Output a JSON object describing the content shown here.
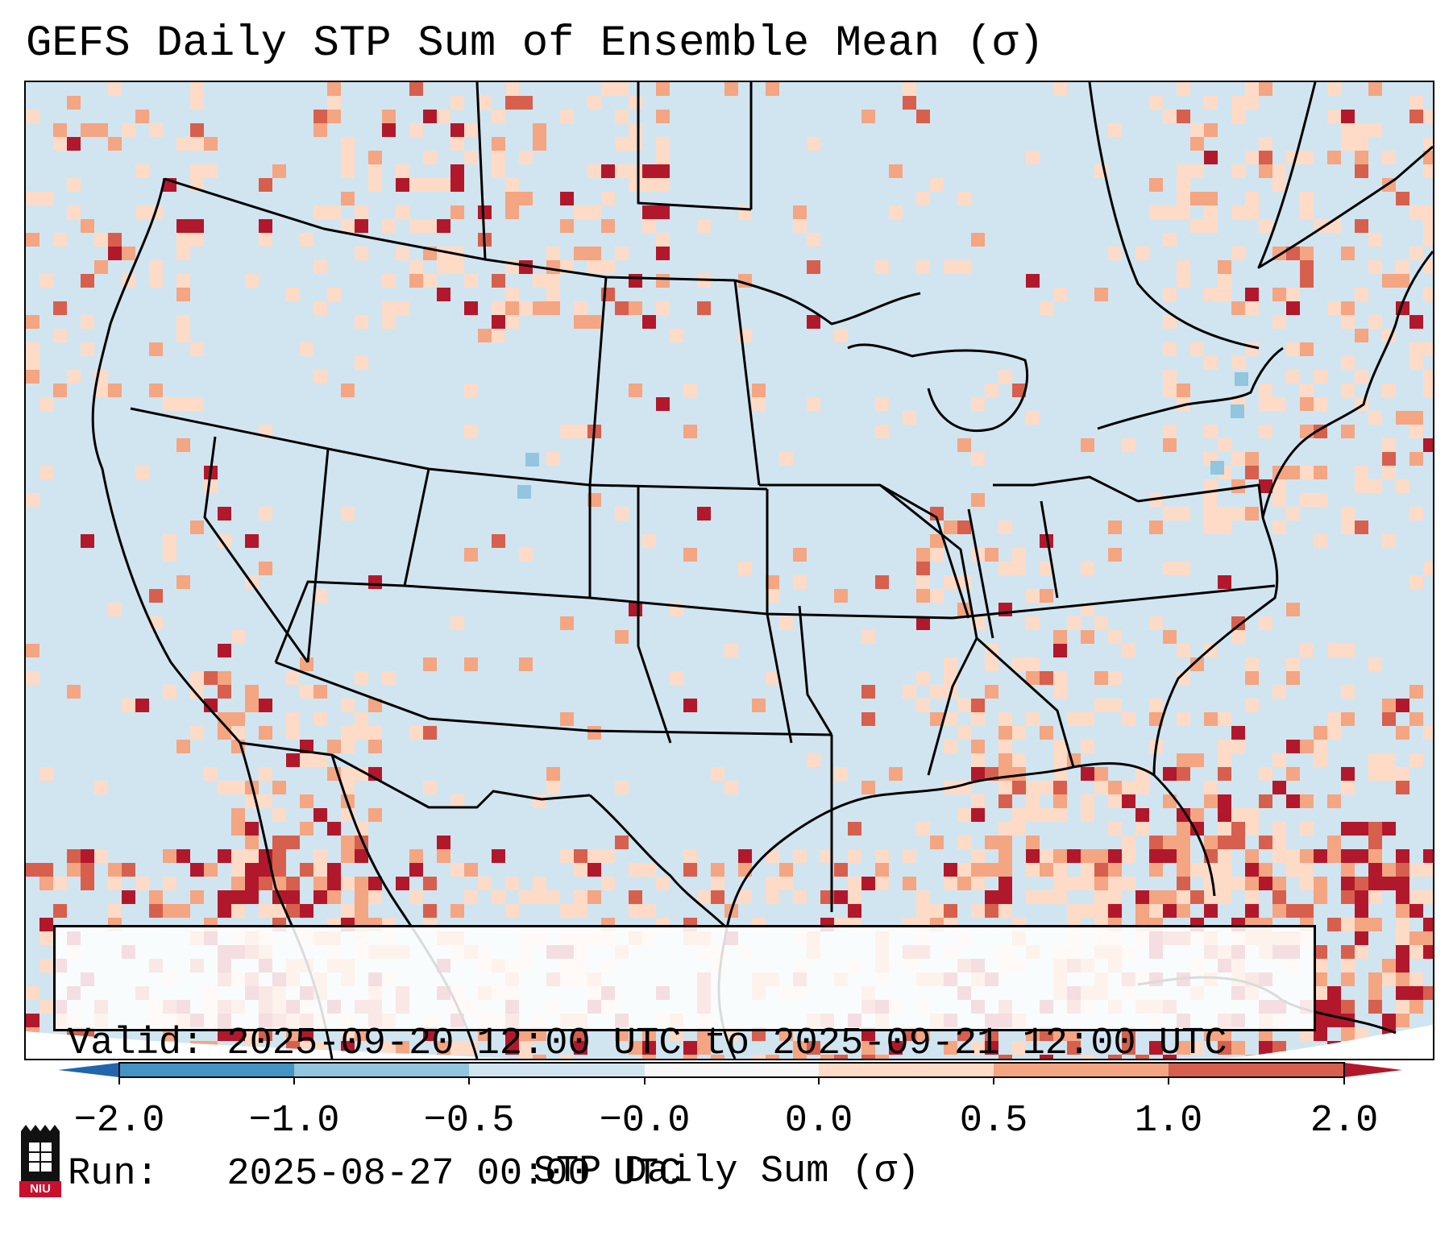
{
  "title": "GEFS Daily STP Sum of Ensemble Mean (σ)",
  "info": {
    "valid": "Valid: 2025-09-20 12:00 UTC to 2025-09-21 12:00 UTC",
    "run": "Run:   2025-08-27 00:00 UTC"
  },
  "colorbar": {
    "label": "STP Daily Sum (σ)",
    "ticks": [
      "−2.0",
      "−1.0",
      "−0.5",
      "−0.0",
      "0.0",
      "0.5",
      "1.0",
      "2.0"
    ],
    "bins": [
      {
        "from": -2.0,
        "to": -1.0,
        "color": "#4393c3"
      },
      {
        "from": -1.0,
        "to": -0.5,
        "color": "#92c5de"
      },
      {
        "from": -0.5,
        "to": -0.0,
        "color": "#d1e5f0"
      },
      {
        "from": -0.0,
        "to": 0.0,
        "color": "#f7f7f7"
      },
      {
        "from": 0.0,
        "to": 0.5,
        "color": "#fddbc7"
      },
      {
        "from": 0.5,
        "to": 1.0,
        "color": "#f4a582"
      },
      {
        "from": 1.0,
        "to": 2.0,
        "color": "#d6604d"
      }
    ],
    "under_color": "#2166ac",
    "over_color": "#b2182b"
  },
  "colors": {
    "background": "#d1e5f0",
    "light": "#fddbc7",
    "medium": "#f4a582",
    "strong": "#d6604d",
    "extreme": "#b2182b",
    "negative": "#92c5de",
    "borders": "#000000"
  },
  "logo": {
    "text": "NIU"
  }
}
